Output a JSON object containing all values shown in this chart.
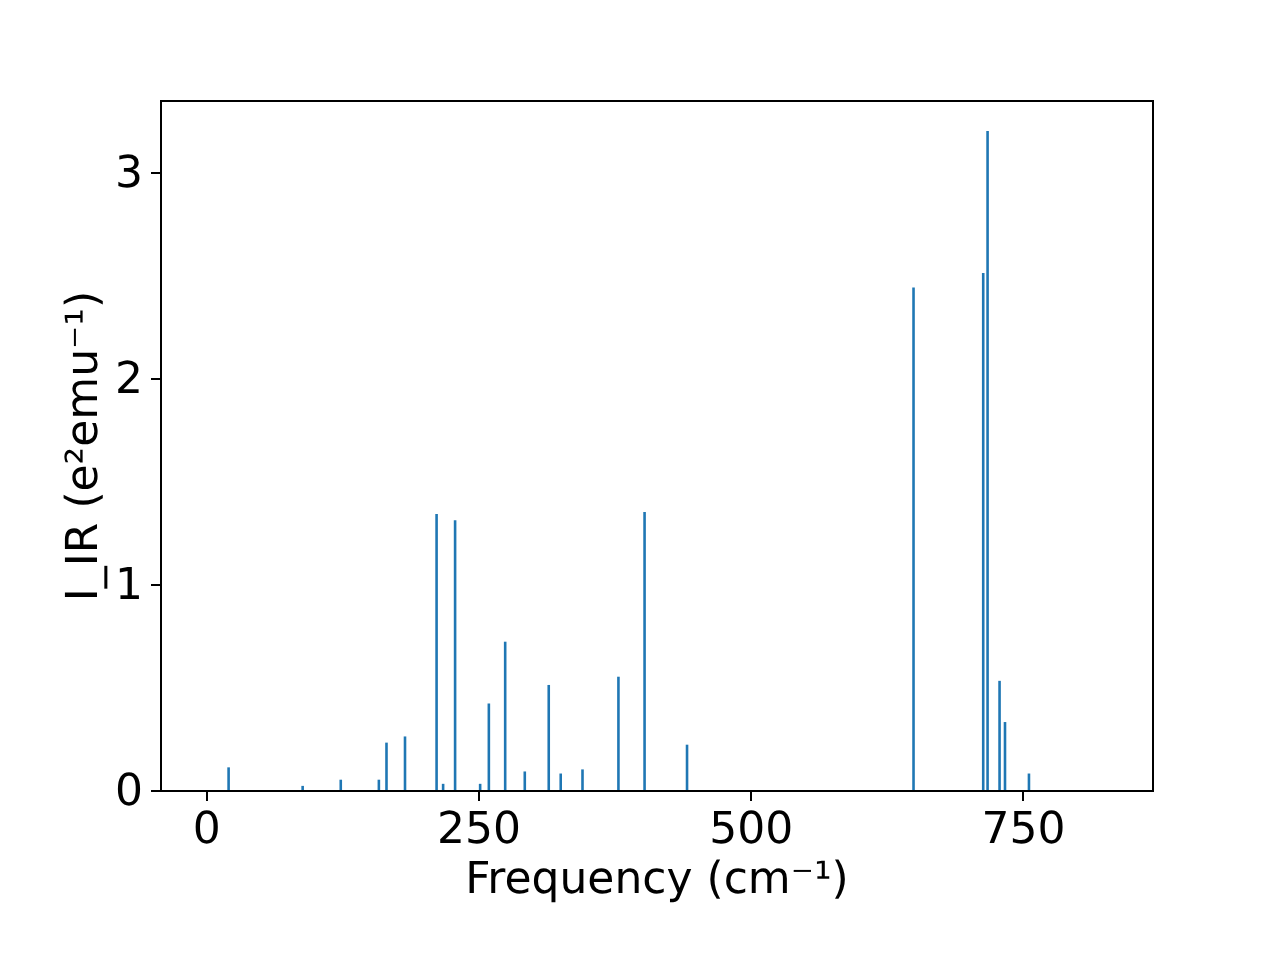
{
  "chart_data": {
    "type": "bar",
    "xlabel": "Frequency (cm⁻¹)",
    "ylabel": "I_IR (e²emu⁻¹)",
    "x": [
      21,
      89,
      124,
      159,
      166,
      183,
      212,
      218,
      229,
      252,
      260,
      275,
      293,
      315,
      326,
      346,
      379,
      403,
      442,
      650,
      714,
      718,
      729,
      734,
      756
    ],
    "series": [
      {
        "color": "#1f77b4",
        "values": [
          0.11,
          0.02,
          0.05,
          0.05,
          0.23,
          0.26,
          1.34,
          0.03,
          1.31,
          0.03,
          0.42,
          0.72,
          0.09,
          0.51,
          0.08,
          0.1,
          0.55,
          1.35,
          0.22,
          2.44,
          2.51,
          3.2,
          0.53,
          0.33,
          0.08
        ]
      }
    ],
    "xlim": [
      -42,
      869
    ],
    "ylim": [
      0,
      3.35
    ],
    "xticks": [
      0,
      250,
      500,
      750
    ],
    "yticks": [
      0,
      1,
      2,
      3
    ],
    "grid": false,
    "legend": false
  }
}
